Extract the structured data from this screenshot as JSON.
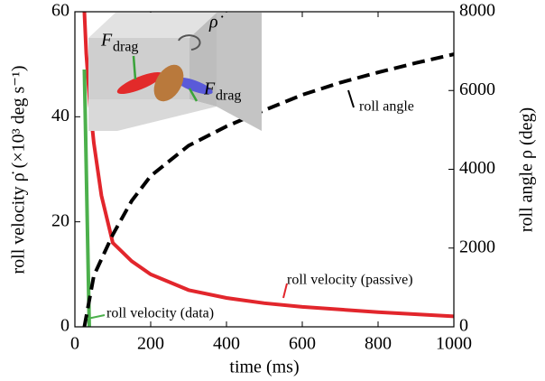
{
  "chart_data": {
    "type": "line",
    "x_label": "time (ms)",
    "y_label": "roll velocity ρ̇ (×10³ deg s⁻¹)",
    "y2_label": "roll angle ρ (deg)",
    "xlim": [
      0,
      1000
    ],
    "xticks": [
      0,
      200,
      400,
      600,
      800,
      1000
    ],
    "ylim": [
      0,
      60
    ],
    "yticks": [
      0,
      20,
      40,
      60
    ],
    "y2lim": [
      0,
      8000
    ],
    "y2ticks": [
      0,
      2000,
      4000,
      6000,
      8000
    ],
    "series": [
      {
        "name": "roll velocity (passive)",
        "color": "#e2262c",
        "x": [
          25,
          30,
          40,
          50,
          70,
          100,
          150,
          200,
          300,
          400,
          500,
          600,
          800,
          1000
        ],
        "values": [
          60,
          52,
          42,
          35,
          25,
          16,
          12.5,
          10,
          7,
          5.5,
          4.5,
          3.8,
          2.8,
          2
        ]
      },
      {
        "name": "roll velocity (data)",
        "color": "#4cb04c",
        "x": [
          25,
          38
        ],
        "values": [
          49,
          0
        ]
      },
      {
        "name": "roll angle",
        "color": "#000000",
        "axis": "y2",
        "dashed": true,
        "x": [
          25,
          50,
          100,
          150,
          200,
          300,
          400,
          500,
          600,
          700,
          800,
          900,
          1000
        ],
        "values": [
          0,
          1300,
          2340,
          3200,
          3830,
          4600,
          5090,
          5500,
          5890,
          6200,
          6460,
          6700,
          6920
        ]
      }
    ],
    "inset_labels": [
      [
        "F",
        "drag"
      ],
      [
        "F",
        "drag"
      ],
      [
        "ρ̇"
      ]
    ]
  }
}
